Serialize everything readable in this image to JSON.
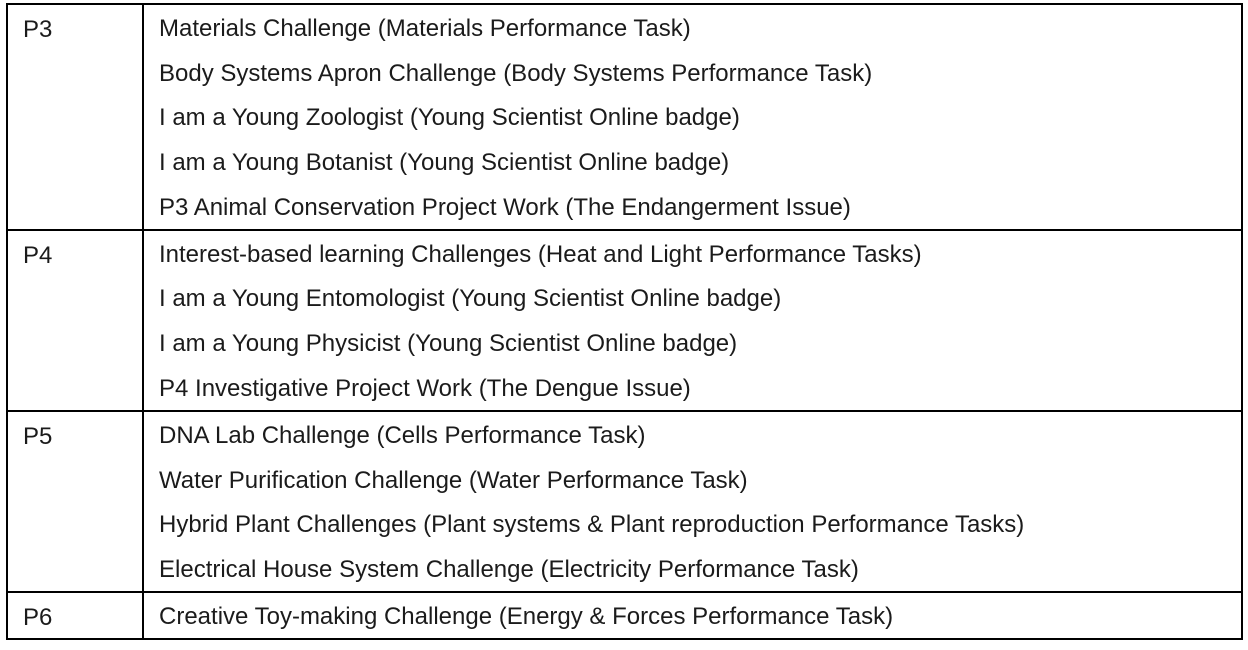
{
  "rows": [
    {
      "level": "P3",
      "activities": [
        "Materials Challenge (Materials Performance Task)",
        "Body Systems Apron Challenge (Body Systems Performance Task)",
        "I am a Young Zoologist (Young Scientist Online badge)",
        "I am a Young Botanist (Young Scientist Online badge)",
        "P3 Animal Conservation Project Work (The Endangerment Issue)"
      ]
    },
    {
      "level": "P4",
      "activities": [
        "Interest-based learning Challenges (Heat and Light Performance Tasks)",
        "I am a Young Entomologist (Young Scientist Online badge)",
        "I am a Young Physicist (Young Scientist Online badge)",
        "P4 Investigative Project Work (The Dengue Issue)"
      ]
    },
    {
      "level": "P5",
      "activities": [
        "DNA Lab Challenge (Cells Performance Task)",
        "Water Purification Challenge (Water Performance Task)",
        "Hybrid Plant Challenges (Plant systems & Plant reproduction Performance Tasks)",
        "Electrical House System Challenge (Electricity Performance Task)"
      ]
    },
    {
      "level": "P6",
      "activities": [
        "Creative Toy-making Challenge (Energy & Forces Performance Task)"
      ]
    }
  ]
}
